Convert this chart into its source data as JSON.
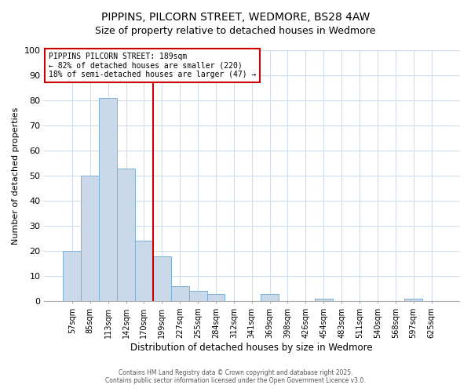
{
  "title": "PIPPINS, PILCORN STREET, WEDMORE, BS28 4AW",
  "subtitle": "Size of property relative to detached houses in Wedmore",
  "xlabel": "Distribution of detached houses by size in Wedmore",
  "ylabel": "Number of detached properties",
  "bar_labels": [
    "57sqm",
    "85sqm",
    "113sqm",
    "142sqm",
    "170sqm",
    "199sqm",
    "227sqm",
    "255sqm",
    "284sqm",
    "312sqm",
    "341sqm",
    "369sqm",
    "398sqm",
    "426sqm",
    "454sqm",
    "483sqm",
    "511sqm",
    "540sqm",
    "568sqm",
    "597sqm",
    "625sqm"
  ],
  "bar_values": [
    20,
    50,
    81,
    53,
    24,
    18,
    6,
    4,
    3,
    0,
    0,
    3,
    0,
    0,
    1,
    0,
    0,
    0,
    0,
    1,
    0
  ],
  "bar_color": "#c9d9ea",
  "bar_edgecolor": "#7bafd4",
  "ylim": [
    0,
    100
  ],
  "yticks": [
    0,
    10,
    20,
    30,
    40,
    50,
    60,
    70,
    80,
    90,
    100
  ],
  "vline_x_idx": 4.5,
  "vline_color": "#cc0000",
  "annotation_title": "PIPPINS PILCORN STREET: 189sqm",
  "annotation_line1": "← 82% of detached houses are smaller (220)",
  "annotation_line2": "18% of semi-detached houses are larger (47) →",
  "annotation_box_color": "#cc0000",
  "footer1": "Contains HM Land Registry data © Crown copyright and database right 2025.",
  "footer2": "Contains public sector information licensed under the Open Government Licence v3.0.",
  "background_color": "#ffffff",
  "grid_color": "#d0dce8",
  "title_fontsize": 10,
  "subtitle_fontsize": 9
}
